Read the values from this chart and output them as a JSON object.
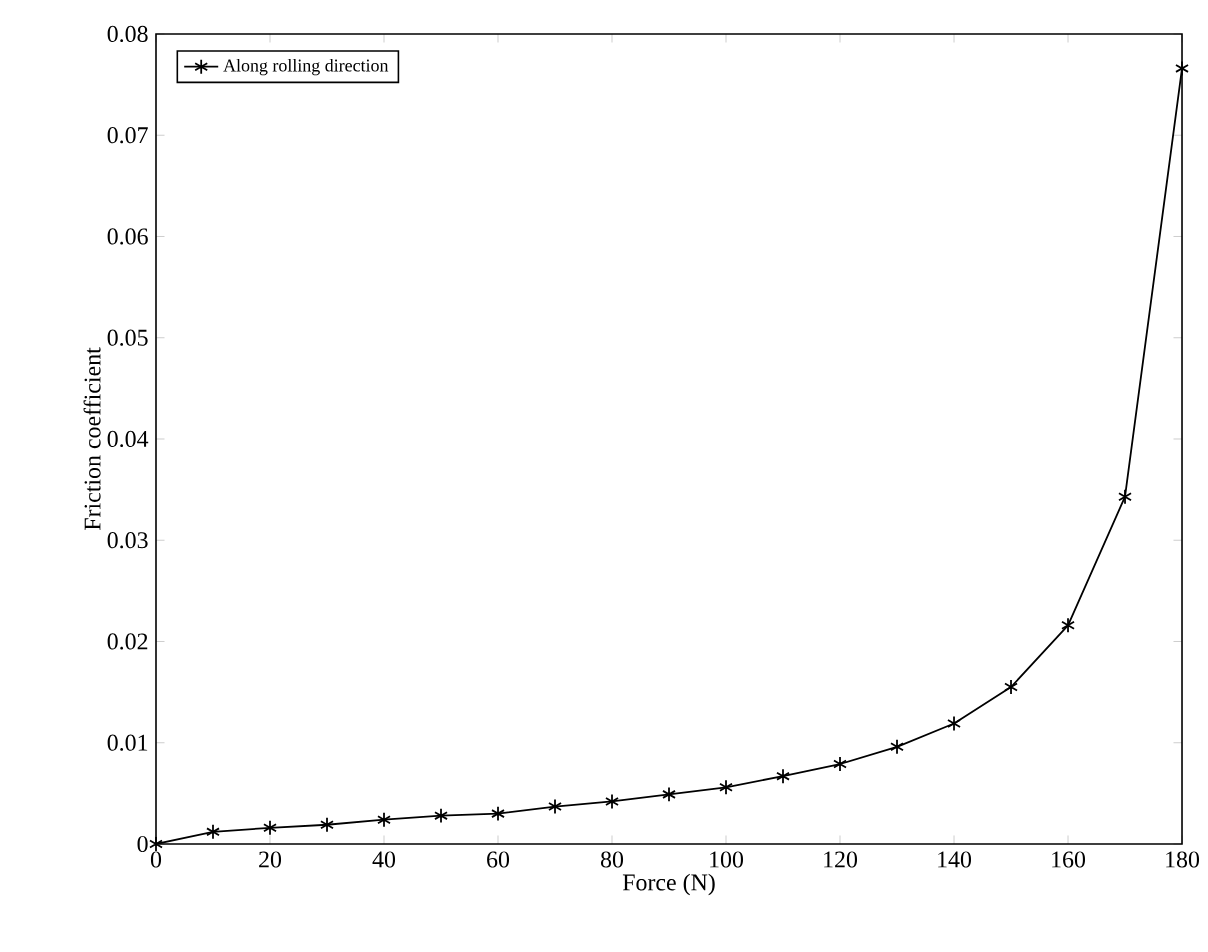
{
  "chart_data": {
    "type": "line",
    "xlabel": "Force (N)",
    "ylabel": "Friction coefficient",
    "x": [
      0,
      10,
      20,
      30,
      40,
      50,
      60,
      70,
      80,
      90,
      100,
      110,
      120,
      130,
      140,
      150,
      160,
      170,
      180
    ],
    "series": [
      {
        "name": "Along rolling direction",
        "color": "#000000",
        "values": [
          0,
          0.0012,
          0.0016,
          0.0019,
          0.0024,
          0.0028,
          0.003,
          0.0037,
          0.0042,
          0.0049,
          0.0056,
          0.0067,
          0.0079,
          0.0096,
          0.0119,
          0.0155,
          0.0216,
          0.0343,
          0.0766
        ]
      }
    ],
    "xlim": [
      0,
      180
    ],
    "ylim": [
      0,
      0.08
    ],
    "xticks": [
      0,
      20,
      40,
      60,
      80,
      100,
      120,
      140,
      160,
      180
    ],
    "yticks": [
      0,
      0.01,
      0.02,
      0.03,
      0.04,
      0.05,
      0.06,
      0.07,
      0.08
    ],
    "marker": "cross",
    "line_style": "solid",
    "legend": "top left",
    "grid": false
  }
}
